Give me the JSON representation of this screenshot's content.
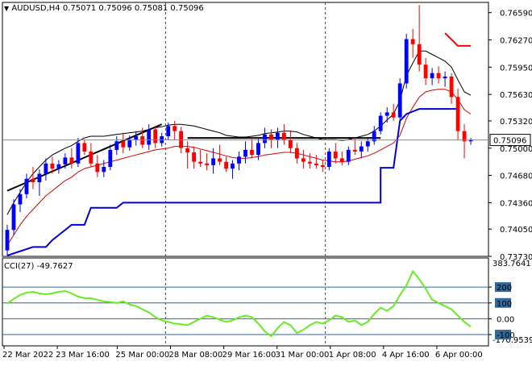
{
  "header": {
    "symbol": "AUDUSD,H4",
    "ohlc": "0.75071 0.75096 0.75081 0.75096",
    "arrow_icon": "triangle-down-icon"
  },
  "indicator": {
    "label": "CCI(27) -49.7627",
    "levels": [
      "200",
      "100",
      "0.00",
      "-100"
    ],
    "scale_top": "383.7641",
    "scale_bottom": "-170.9539"
  },
  "colors": {
    "bull": "#0000ff",
    "bear": "#ff0000",
    "bands_upper": "#000000",
    "bands_mid": "#dd0000",
    "stop_line": "#0000dd",
    "trend_line": "#000000",
    "cci": "#66ee22",
    "grid": "#444444",
    "level_line": "#336699"
  },
  "chart_data": {
    "type": "candlestick",
    "symbol": "AUDUSD",
    "timeframe": "H4",
    "y_ticks": [
      "0.76590",
      "0.76270",
      "0.75950",
      "0.75630",
      "0.75320",
      "0.75000",
      "0.74680",
      "0.74360",
      "0.74050",
      "0.73730"
    ],
    "ylim": [
      0.7373,
      0.7671
    ],
    "current_price": "0.75096",
    "x_labels": [
      "22 Mar 2022",
      "23 Mar 16:00",
      "25 Mar 00:00",
      "28 Mar 08:00",
      "29 Mar 16:00",
      "31 Mar 00:00",
      "1 Apr 08:00",
      "4 Apr 16:00",
      "6 Apr 00:00"
    ],
    "candles": [
      [
        0.738,
        0.741,
        0.7374,
        0.7404
      ],
      [
        0.7404,
        0.744,
        0.7398,
        0.7434
      ],
      [
        0.7434,
        0.7452,
        0.7425,
        0.7446
      ],
      [
        0.7446,
        0.747,
        0.7441,
        0.7464
      ],
      [
        0.7464,
        0.7478,
        0.7452,
        0.746
      ],
      [
        0.746,
        0.7475,
        0.7444,
        0.747
      ],
      [
        0.747,
        0.7488,
        0.7462,
        0.7482
      ],
      [
        0.7482,
        0.749,
        0.747,
        0.7476
      ],
      [
        0.7476,
        0.7486,
        0.747,
        0.7481
      ],
      [
        0.7481,
        0.7494,
        0.7476,
        0.7489
      ],
      [
        0.7489,
        0.75,
        0.7476,
        0.7482
      ],
      [
        0.7482,
        0.7512,
        0.7478,
        0.7506
      ],
      [
        0.7506,
        0.751,
        0.7492,
        0.7496
      ],
      [
        0.7496,
        0.7506,
        0.7478,
        0.7482
      ],
      [
        0.7482,
        0.7492,
        0.7466,
        0.7472
      ],
      [
        0.7472,
        0.7486,
        0.7466,
        0.7478
      ],
      [
        0.7478,
        0.7504,
        0.7474,
        0.7498
      ],
      [
        0.7498,
        0.7514,
        0.7492,
        0.7508
      ],
      [
        0.7508,
        0.7518,
        0.7494,
        0.7501
      ],
      [
        0.7501,
        0.7515,
        0.7497,
        0.751
      ],
      [
        0.751,
        0.752,
        0.7503,
        0.7514
      ],
      [
        0.7514,
        0.7524,
        0.75,
        0.7504
      ],
      [
        0.7504,
        0.7528,
        0.7498,
        0.7522
      ],
      [
        0.7522,
        0.7526,
        0.75,
        0.7506
      ],
      [
        0.7506,
        0.7518,
        0.7502,
        0.7514
      ],
      [
        0.7514,
        0.753,
        0.751,
        0.7526
      ],
      [
        0.7526,
        0.7532,
        0.751,
        0.752
      ],
      [
        0.752,
        0.7525,
        0.7494,
        0.75
      ],
      [
        0.75,
        0.7508,
        0.7476,
        0.7495
      ],
      [
        0.7495,
        0.7502,
        0.7476,
        0.7484
      ],
      [
        0.7484,
        0.7498,
        0.7478,
        0.7482
      ],
      [
        0.7482,
        0.7494,
        0.7474,
        0.748
      ],
      [
        0.748,
        0.75,
        0.747,
        0.7488
      ],
      [
        0.7488,
        0.7504,
        0.748,
        0.7484
      ],
      [
        0.7484,
        0.749,
        0.7472,
        0.7476
      ],
      [
        0.7476,
        0.7486,
        0.7464,
        0.7482
      ],
      [
        0.7482,
        0.7496,
        0.7474,
        0.749
      ],
      [
        0.749,
        0.7508,
        0.7482,
        0.7498
      ],
      [
        0.7498,
        0.7512,
        0.7488,
        0.7492
      ],
      [
        0.7492,
        0.7512,
        0.7486,
        0.7506
      ],
      [
        0.7506,
        0.7524,
        0.75,
        0.7516
      ],
      [
        0.7516,
        0.7522,
        0.75,
        0.751
      ],
      [
        0.751,
        0.7524,
        0.75,
        0.7518
      ],
      [
        0.7518,
        0.7528,
        0.7504,
        0.751
      ],
      [
        0.751,
        0.752,
        0.7494,
        0.75
      ],
      [
        0.75,
        0.7506,
        0.7482,
        0.7488
      ],
      [
        0.7488,
        0.7498,
        0.7476,
        0.7484
      ],
      [
        0.7484,
        0.7494,
        0.7476,
        0.7482
      ],
      [
        0.7482,
        0.7492,
        0.7476,
        0.748
      ],
      [
        0.748,
        0.7486,
        0.7472,
        0.7478
      ],
      [
        0.7478,
        0.75,
        0.7474,
        0.7496
      ],
      [
        0.7496,
        0.7506,
        0.7482,
        0.7488
      ],
      [
        0.7488,
        0.7496,
        0.748,
        0.7484
      ],
      [
        0.7484,
        0.7502,
        0.748,
        0.7498
      ],
      [
        0.7498,
        0.7512,
        0.7492,
        0.7496
      ],
      [
        0.7496,
        0.7508,
        0.7488,
        0.7502
      ],
      [
        0.7502,
        0.7512,
        0.7496,
        0.7508
      ],
      [
        0.7508,
        0.7526,
        0.7504,
        0.752
      ],
      [
        0.752,
        0.7542,
        0.7516,
        0.7538
      ],
      [
        0.7538,
        0.7548,
        0.753,
        0.7542
      ],
      [
        0.7542,
        0.7552,
        0.7532,
        0.7536
      ],
      [
        0.7536,
        0.7582,
        0.7532,
        0.7576
      ],
      [
        0.7576,
        0.7634,
        0.757,
        0.7628
      ],
      [
        0.7628,
        0.764,
        0.7606,
        0.7622
      ],
      [
        0.7622,
        0.7668,
        0.759,
        0.7598
      ],
      [
        0.7598,
        0.7606,
        0.7574,
        0.7582
      ],
      [
        0.7582,
        0.7594,
        0.7574,
        0.7588
      ],
      [
        0.7588,
        0.7596,
        0.7576,
        0.7582
      ],
      [
        0.7582,
        0.759,
        0.7572,
        0.7584
      ],
      [
        0.7584,
        0.7588,
        0.7552,
        0.756
      ],
      [
        0.756,
        0.757,
        0.751,
        0.752
      ],
      [
        0.752,
        0.7528,
        0.7488,
        0.7508
      ],
      [
        0.7508,
        0.7512,
        0.7504,
        0.751
      ]
    ],
    "bands_upper": [
      0.7422,
      0.7436,
      0.7448,
      0.746,
      0.747,
      0.7478,
      0.7486,
      0.7492,
      0.7496,
      0.75,
      0.7503,
      0.7508,
      0.7512,
      0.7514,
      0.7514,
      0.7514,
      0.7515,
      0.7516,
      0.7517,
      0.7518,
      0.7519,
      0.752,
      0.7522,
      0.7524,
      0.7525,
      0.7527,
      0.7528,
      0.7528,
      0.7527,
      0.7526,
      0.7524,
      0.7522,
      0.752,
      0.7518,
      0.7515,
      0.7514,
      0.7513,
      0.7513,
      0.7514,
      0.7515,
      0.7517,
      0.7518,
      0.7519,
      0.752,
      0.752,
      0.7519,
      0.7516,
      0.7514,
      0.7512,
      0.751,
      0.751,
      0.751,
      0.7509,
      0.751,
      0.7512,
      0.7514,
      0.7516,
      0.752,
      0.7526,
      0.7533,
      0.754,
      0.7556,
      0.7585,
      0.76,
      0.7614,
      0.7614,
      0.761,
      0.7606,
      0.7602,
      0.7595,
      0.758,
      0.7566,
      0.7562
    ],
    "bands_mid": [
      0.7386,
      0.7398,
      0.741,
      0.742,
      0.7428,
      0.7436,
      0.7444,
      0.745,
      0.7456,
      0.7462,
      0.7466,
      0.7472,
      0.7476,
      0.7478,
      0.748,
      0.7482,
      0.7484,
      0.7486,
      0.7488,
      0.749,
      0.7492,
      0.7494,
      0.7496,
      0.7498,
      0.7499,
      0.75,
      0.7502,
      0.7502,
      0.7502,
      0.7501,
      0.7499,
      0.7497,
      0.7495,
      0.7493,
      0.7491,
      0.7489,
      0.7488,
      0.7488,
      0.7489,
      0.749,
      0.7492,
      0.7493,
      0.7494,
      0.7495,
      0.7495,
      0.7494,
      0.7492,
      0.749,
      0.7488,
      0.7486,
      0.7485,
      0.7484,
      0.7484,
      0.7485,
      0.7487,
      0.7489,
      0.7491,
      0.7494,
      0.7498,
      0.7502,
      0.7506,
      0.7515,
      0.7535,
      0.7548,
      0.756,
      0.7566,
      0.7568,
      0.7569,
      0.7569,
      0.7566,
      0.7557,
      0.7545,
      0.754
    ],
    "stop_line": [
      [
        0,
        0.7374
      ],
      [
        4,
        0.7384
      ],
      [
        6,
        0.7384
      ],
      [
        7,
        0.7392
      ],
      [
        10,
        0.741
      ],
      [
        12,
        0.741
      ],
      [
        13,
        0.743
      ],
      [
        17,
        0.743
      ],
      [
        18,
        0.7436
      ],
      [
        36,
        0.7436
      ],
      [
        55,
        0.7436
      ],
      [
        58,
        0.7436
      ],
      [
        58,
        0.7477
      ],
      [
        60,
        0.7477
      ],
      [
        61,
        0.7532
      ],
      [
        62,
        0.754
      ],
      [
        64,
        0.7546
      ],
      [
        67,
        0.7546
      ],
      [
        70,
        0.7546
      ]
    ],
    "trend_lines": [
      [
        [
          0,
          0.745
        ],
        [
          24,
          0.7528
        ]
      ],
      [
        [
          28,
          0.7512
        ],
        [
          58,
          0.7512
        ]
      ]
    ],
    "red_marker": [
      [
        68,
        0.7635
      ],
      [
        70,
        0.762
      ],
      [
        72,
        0.762
      ]
    ],
    "cci": {
      "label": "CCI(27)",
      "value": -49.7627,
      "ylim": [
        -170.9539,
        383.7641
      ],
      "levels": [
        200,
        100,
        0,
        -100
      ],
      "values": [
        95,
        125,
        150,
        165,
        170,
        160,
        155,
        160,
        170,
        175,
        160,
        140,
        130,
        130,
        120,
        110,
        105,
        100,
        110,
        90,
        80,
        60,
        40,
        10,
        -10,
        -20,
        -30,
        -35,
        -40,
        -20,
        0,
        20,
        10,
        -5,
        -20,
        -10,
        10,
        20,
        10,
        -30,
        -80,
        -110,
        -60,
        -20,
        -40,
        -90,
        -70,
        -40,
        -20,
        -30,
        -10,
        20,
        10,
        -20,
        -10,
        -40,
        -20,
        30,
        70,
        50,
        80,
        150,
        210,
        300,
        250,
        190,
        120,
        100,
        80,
        60,
        20,
        -20,
        -49.7627
      ]
    }
  }
}
